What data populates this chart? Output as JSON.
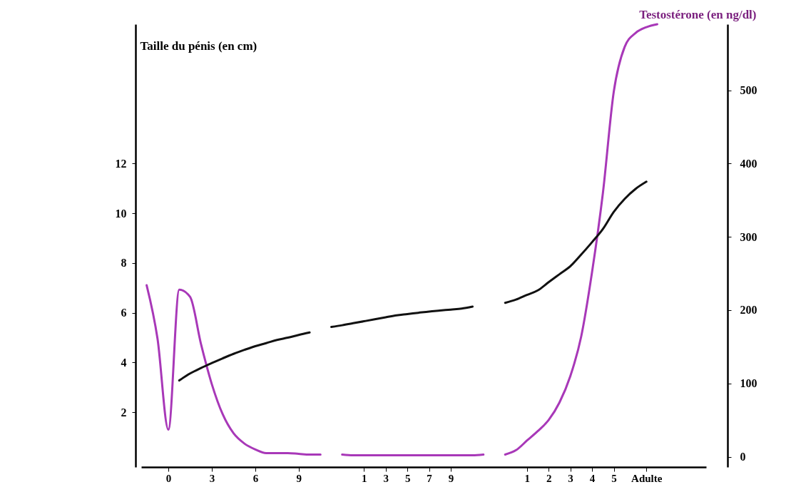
{
  "chart_data": {
    "type": "line",
    "ylabel": "Taille du pénis (en cm)",
    "y2label": "Testostérone (en ng/dl)",
    "categories": [
      null,
      null,
      "0",
      null,
      null,
      null,
      "3",
      null,
      null,
      null,
      "6",
      null,
      null,
      null,
      "9",
      null,
      null,
      null,
      null,
      null,
      "1",
      null,
      "3",
      null,
      "5",
      null,
      "7",
      null,
      "9",
      null,
      null,
      null,
      null,
      null,
      null,
      "1",
      null,
      "2",
      null,
      "3",
      null,
      "4",
      null,
      "5",
      null,
      null,
      "Adulte",
      null,
      null,
      null,
      null,
      null
    ],
    "ylim": [
      -0.2,
      17.6
    ],
    "yticks": [
      2,
      4,
      6,
      8,
      10,
      12
    ],
    "y2lim": [
      -14,
      590
    ],
    "y2ticks": [
      0,
      100,
      200,
      300,
      400,
      500
    ],
    "series": [
      {
        "color": "#a838b8",
        "axis": "y2",
        "values": [
          234,
          161,
          37,
          228,
          218,
          154,
          99,
          58,
          32,
          18,
          10,
          5,
          5,
          5,
          4,
          3,
          3,
          null,
          3,
          2,
          2,
          2,
          2,
          2,
          2,
          2,
          2,
          2,
          2,
          2,
          2,
          3,
          null,
          3,
          9,
          22,
          35,
          50,
          74,
          110,
          164,
          252,
          360,
          498,
          559,
          578,
          586,
          590,
          null,
          null,
          null,
          null
        ]
      },
      {
        "color": "#111111",
        "values": [
          null,
          null,
          null,
          3.28,
          3.56,
          3.78,
          3.98,
          4.17,
          4.35,
          4.51,
          4.66,
          4.78,
          4.91,
          5.0,
          5.11,
          5.21,
          null,
          5.43,
          5.5,
          5.58,
          5.66,
          5.74,
          5.82,
          5.9,
          5.95,
          6.0,
          6.05,
          6.09,
          6.13,
          6.17,
          6.25,
          null,
          null,
          6.4,
          6.53,
          6.72,
          6.9,
          7.23,
          7.55,
          7.87,
          8.34,
          8.84,
          9.37,
          10.06,
          10.58,
          10.98,
          11.27,
          null,
          null,
          null,
          null,
          null
        ]
      }
    ]
  }
}
